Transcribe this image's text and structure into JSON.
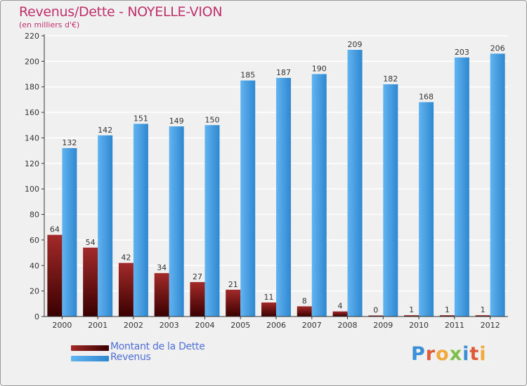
{
  "colors": {
    "background": "#f0f0f0",
    "grid": "#ffffff",
    "axis": "#333333",
    "title": "#c0306a",
    "dette_top": "#a32a2a",
    "dette_bottom": "#3a0000",
    "revenus_top": "#62b4f0",
    "revenus_bottom": "#2e87cf",
    "legend_text": "#4f6fd8"
  },
  "chart_data": {
    "type": "bar",
    "title": "Revenus/Dette - NOYELLE-VION",
    "subtitle": "(en milliers d'€)",
    "categories": [
      "2000",
      "2001",
      "2002",
      "2003",
      "2004",
      "2005",
      "2006",
      "2007",
      "2008",
      "2009",
      "2010",
      "2011",
      "2012"
    ],
    "series": [
      {
        "name": "Montant de la Dette",
        "values": [
          64,
          54,
          42,
          34,
          27,
          21,
          11,
          8,
          4,
          0,
          1,
          1,
          1
        ]
      },
      {
        "name": "Revenus",
        "values": [
          132,
          142,
          151,
          149,
          150,
          185,
          187,
          190,
          209,
          182,
          168,
          203,
          206
        ]
      }
    ],
    "ylim": [
      0,
      220
    ],
    "yticks": [
      0,
      20,
      40,
      60,
      80,
      100,
      120,
      140,
      160,
      180,
      200,
      220
    ],
    "grid": true,
    "legend": "bottom-left"
  },
  "legend": {
    "items": [
      {
        "label": "Montant de la Dette",
        "icon": "dark-red-bar-swatch"
      },
      {
        "label": "Revenus",
        "icon": "blue-bar-swatch"
      }
    ]
  },
  "logo": {
    "letters": [
      {
        "char": "P",
        "color": "#3b8fd6"
      },
      {
        "char": "r",
        "color": "#e05a3a"
      },
      {
        "char": "o",
        "color": "#f2a93b"
      },
      {
        "char": "x",
        "color": "#7cc04a"
      },
      {
        "char": "i",
        "color": "#3b8fd6"
      },
      {
        "char": "t",
        "color": "#e05a3a"
      },
      {
        "char": "i",
        "color": "#f2a93b"
      }
    ]
  }
}
